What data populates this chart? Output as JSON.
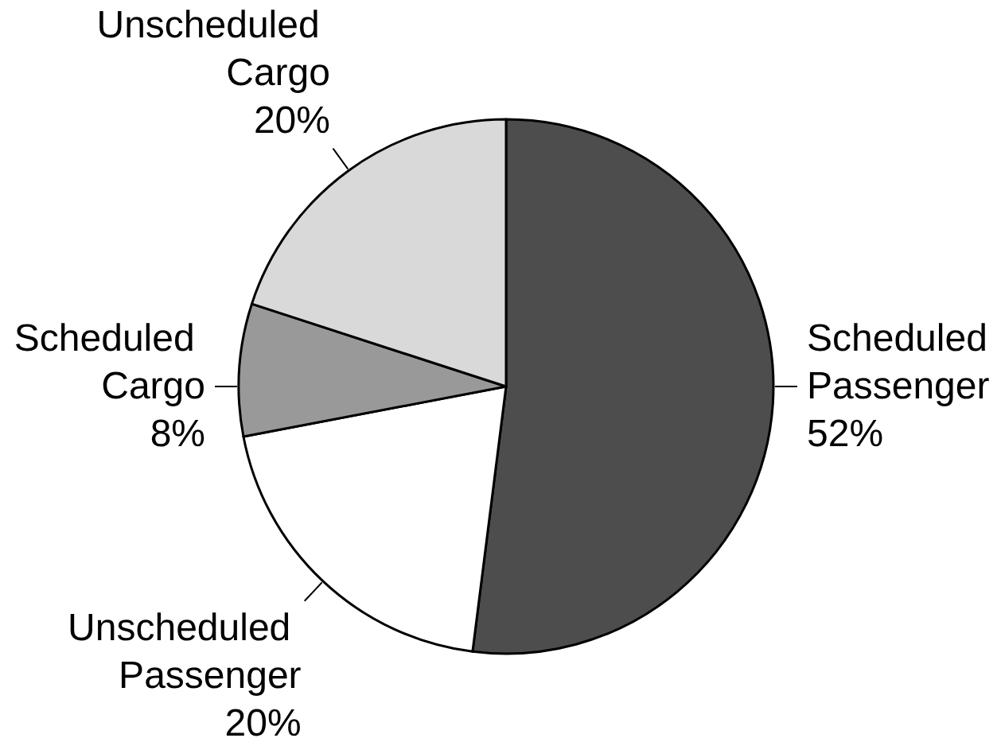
{
  "chart_data": {
    "type": "pie",
    "categories": [
      "Scheduled Passenger",
      "Unscheduled Passenger",
      "Scheduled Cargo",
      "Unscheduled Cargo"
    ],
    "values": [
      52,
      20,
      8,
      20
    ],
    "value_labels": [
      "52%",
      "20%",
      "8%",
      "20%"
    ],
    "colors": [
      "#4d4d4d",
      "#ffffff",
      "#999999",
      "#d9d9d9"
    ]
  }
}
